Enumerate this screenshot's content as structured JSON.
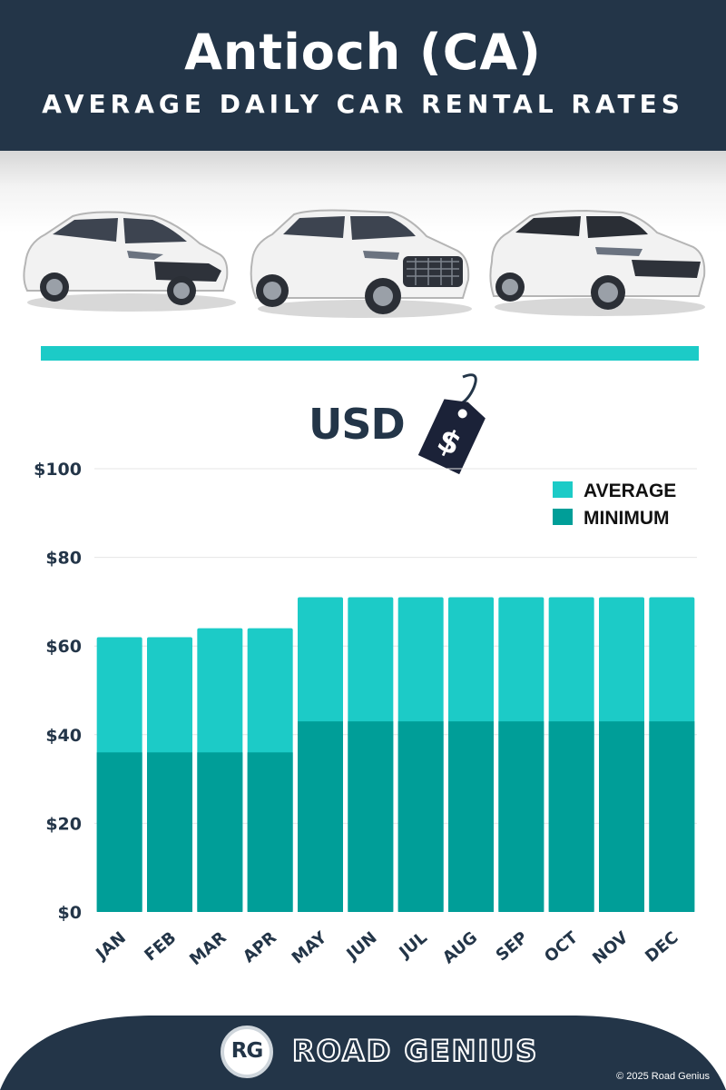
{
  "header": {
    "title": "Antioch (CA)",
    "subtitle": "AVERAGE DAILY CAR RENTAL RATES"
  },
  "currency_label": "USD",
  "tag_symbol": "$",
  "colors": {
    "navy": "#233548",
    "average": "#1ccbc7",
    "minimum": "#009e98",
    "accent_rule": "#1ccbc7"
  },
  "chart_data": {
    "type": "bar",
    "stacked_overlay": true,
    "categories": [
      "JAN",
      "FEB",
      "MAR",
      "APR",
      "MAY",
      "JUN",
      "JUL",
      "AUG",
      "SEP",
      "OCT",
      "NOV",
      "DEC"
    ],
    "series": [
      {
        "name": "AVERAGE",
        "values": [
          62,
          62,
          64,
          64,
          71,
          71,
          71,
          71,
          71,
          71,
          71,
          71
        ]
      },
      {
        "name": "MINIMUM",
        "values": [
          36,
          36,
          36,
          36,
          43,
          43,
          43,
          43,
          43,
          43,
          43,
          43
        ]
      }
    ],
    "y_ticks": [
      "$0",
      "$20",
      "$40",
      "$60",
      "$80",
      "$100"
    ],
    "ylim": [
      0,
      100
    ],
    "grid": true,
    "legend_position": "top-right"
  },
  "footer": {
    "logo_mark": "RG",
    "brand": "ROAD GENIUS",
    "copyright": "© 2025 Road Genius"
  }
}
